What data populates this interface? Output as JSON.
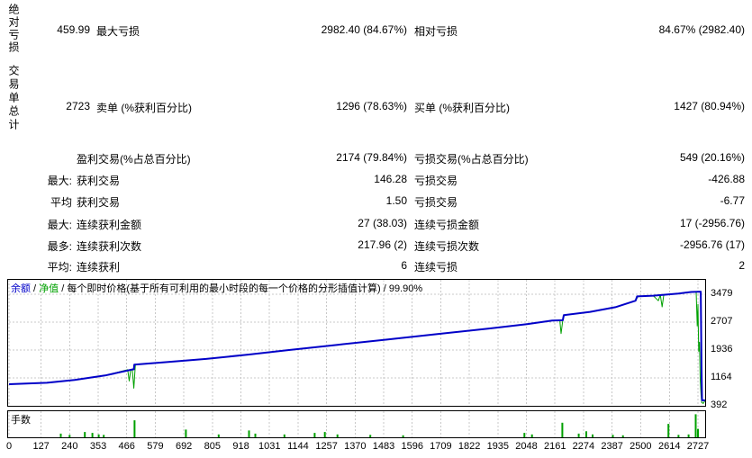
{
  "report": {
    "sections": {
      "s1": "绝对亏损",
      "s2": "交易单总计"
    },
    "rows": [
      {
        "prefix": "",
        "v1": "459.99",
        "l1": "最大亏损",
        "v2": "2982.40 (84.67%)",
        "l2": "相对亏损",
        "v3": "84.67% (2982.40)"
      },
      {
        "prefix": "",
        "v1": "2723",
        "l1": "卖单 (%获利百分比)",
        "v2": "1296 (78.63%)",
        "l2": "买单 (%获利百分比)",
        "v3": "1427 (80.94%)"
      },
      {
        "prefix": "",
        "v1": "",
        "l1": "盈利交易(%占总百分比)",
        "v2": "2174 (79.84%)",
        "l2": "亏损交易(%占总百分比)",
        "v3": "549 (20.16%)"
      },
      {
        "prefix": "最大:",
        "v1": "",
        "l1": "获利交易",
        "v2": "146.28",
        "l2": "亏损交易",
        "v3": "-426.88"
      },
      {
        "prefix": "平均",
        "v1": "",
        "l1": "获利交易",
        "v2": "1.50",
        "l2": "亏损交易",
        "v3": "-6.77"
      },
      {
        "prefix": "最大:",
        "v1": "",
        "l1": "连续获利金额",
        "v2": "27 (38.03)",
        "l2": "连续亏损金额",
        "v3": "17 (-2956.76)"
      },
      {
        "prefix": "最多:",
        "v1": "",
        "l1": "连续获利次数",
        "v2": "217.96 (2)",
        "l2": "连续亏损次数",
        "v3": "-2956.76 (17)"
      },
      {
        "prefix": "平均:",
        "v1": "",
        "l1": "连续获利",
        "v2": "6",
        "l2": "连续亏损",
        "v3": "2"
      }
    ]
  },
  "chart_data": {
    "type": "line",
    "legend": {
      "balance": "余额",
      "equity": "净值",
      "sep": " / "
    },
    "subtitle": "每个即时价格(基于所有可利用的最小时段的每一个价格的分形插值计算)",
    "modeling_quality": "99.90%",
    "grid_color": "#c8c8c8",
    "x_ticks": [
      0,
      127,
      240,
      353,
      466,
      579,
      692,
      805,
      918,
      1031,
      1144,
      1257,
      1370,
      1483,
      1596,
      1709,
      1822,
      1935,
      2048,
      2161,
      2274,
      2387,
      2500,
      2614,
      2727
    ],
    "y_ticks": [
      3479,
      2707,
      1936,
      1164,
      392
    ],
    "ylim": [
      392,
      3550
    ],
    "series": [
      {
        "name": "净值",
        "color": "#00A000",
        "width": 1,
        "points": [
          [
            0,
            990
          ],
          [
            150,
            1030
          ],
          [
            260,
            1110
          ],
          [
            380,
            1230
          ],
          [
            470,
            1390
          ],
          [
            476,
            1080
          ],
          [
            482,
            1390
          ],
          [
            488,
            1395
          ],
          [
            494,
            880
          ],
          [
            500,
            1530
          ],
          [
            620,
            1600
          ],
          [
            780,
            1690
          ],
          [
            950,
            1810
          ],
          [
            1100,
            1930
          ],
          [
            1300,
            2080
          ],
          [
            1500,
            2230
          ],
          [
            1700,
            2380
          ],
          [
            1900,
            2530
          ],
          [
            2050,
            2650
          ],
          [
            2150,
            2750
          ],
          [
            2180,
            2755
          ],
          [
            2185,
            2390
          ],
          [
            2192,
            2760
          ],
          [
            2198,
            2900
          ],
          [
            2300,
            2990
          ],
          [
            2400,
            3120
          ],
          [
            2480,
            3300
          ],
          [
            2490,
            3420
          ],
          [
            2550,
            3440
          ],
          [
            2570,
            3300
          ],
          [
            2578,
            3460
          ],
          [
            2585,
            3130
          ],
          [
            2592,
            3470
          ],
          [
            2650,
            3500
          ],
          [
            2700,
            3540
          ],
          [
            2720,
            3550
          ],
          [
            2724,
            2600
          ],
          [
            2727,
            3200
          ],
          [
            2730,
            1900
          ],
          [
            2733,
            2150
          ],
          [
            2736,
            1100
          ],
          [
            2739,
            700
          ],
          [
            2742,
            480
          ],
          [
            2748,
            460
          ],
          [
            2755,
            540
          ]
        ]
      },
      {
        "name": "余额",
        "color": "#0000C8",
        "width": 2,
        "points": [
          [
            0,
            990
          ],
          [
            150,
            1030
          ],
          [
            260,
            1110
          ],
          [
            380,
            1230
          ],
          [
            490,
            1400
          ],
          [
            494,
            1400
          ],
          [
            496,
            1530
          ],
          [
            620,
            1600
          ],
          [
            780,
            1690
          ],
          [
            950,
            1810
          ],
          [
            1100,
            1930
          ],
          [
            1300,
            2080
          ],
          [
            1500,
            2230
          ],
          [
            1700,
            2380
          ],
          [
            1900,
            2530
          ],
          [
            2050,
            2650
          ],
          [
            2150,
            2750
          ],
          [
            2192,
            2760
          ],
          [
            2196,
            2900
          ],
          [
            2300,
            2990
          ],
          [
            2400,
            3120
          ],
          [
            2480,
            3300
          ],
          [
            2486,
            3420
          ],
          [
            2550,
            3440
          ],
          [
            2650,
            3500
          ],
          [
            2700,
            3540
          ],
          [
            2738,
            3550
          ],
          [
            2741,
            1500
          ],
          [
            2743,
            545
          ],
          [
            2755,
            545
          ]
        ]
      }
    ],
    "lots": {
      "label": "手数",
      "color": "#00A000",
      "bars": [
        [
          205,
          0.15
        ],
        [
          240,
          0.1
        ],
        [
          300,
          0.22
        ],
        [
          330,
          0.18
        ],
        [
          355,
          0.12
        ],
        [
          375,
          0.1
        ],
        [
          497,
          0.7
        ],
        [
          700,
          0.32
        ],
        [
          830,
          0.12
        ],
        [
          950,
          0.28
        ],
        [
          975,
          0.15
        ],
        [
          1090,
          0.12
        ],
        [
          1210,
          0.18
        ],
        [
          1250,
          0.22
        ],
        [
          1300,
          0.12
        ],
        [
          1430,
          0.1
        ],
        [
          1560,
          0.08
        ],
        [
          2040,
          0.18
        ],
        [
          2070,
          0.12
        ],
        [
          2190,
          0.6
        ],
        [
          2255,
          0.15
        ],
        [
          2285,
          0.25
        ],
        [
          2310,
          0.12
        ],
        [
          2390,
          0.1
        ],
        [
          2430,
          0.08
        ],
        [
          2610,
          0.55
        ],
        [
          2650,
          0.1
        ],
        [
          2690,
          0.12
        ],
        [
          2718,
          0.95
        ],
        [
          2727,
          0.35
        ]
      ]
    }
  }
}
